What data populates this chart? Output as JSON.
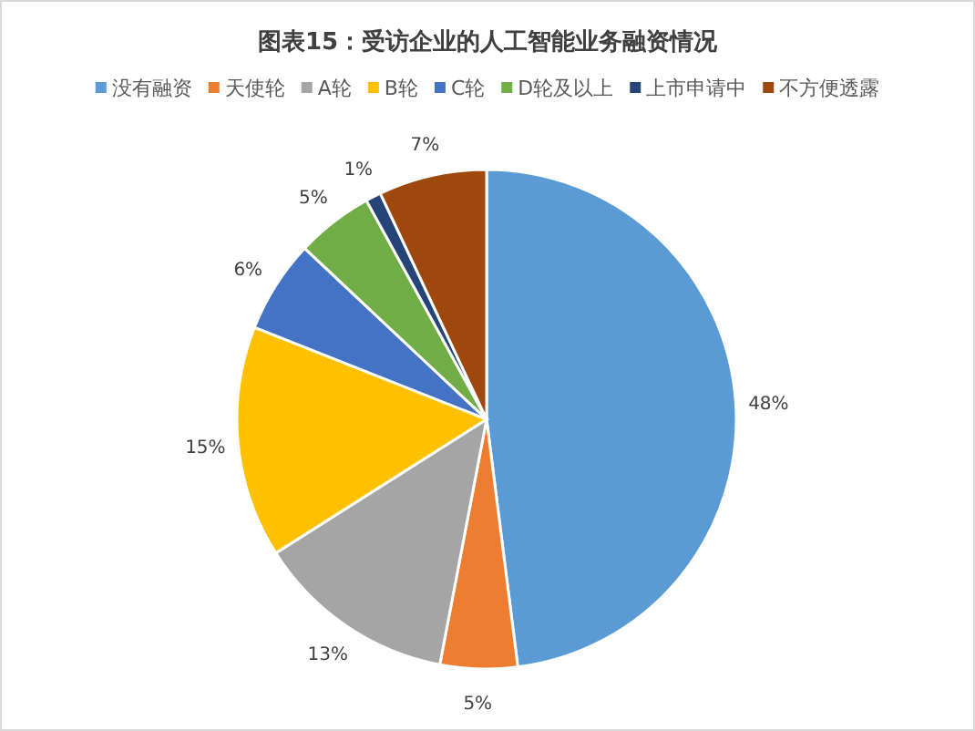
{
  "chart_data": {
    "type": "pie",
    "title": "图表15：受访企业的人工智能业务融资情况",
    "categories": [
      "没有融资",
      "天使轮",
      "A轮",
      "B轮",
      "C轮",
      "D轮及以上",
      "上市申请中",
      "不方便透露"
    ],
    "values": [
      48,
      5,
      13,
      15,
      6,
      5,
      1,
      7
    ],
    "colors": [
      "#5b9bd5",
      "#ed7d31",
      "#a5a5a5",
      "#ffc000",
      "#4472c4",
      "#70ad47",
      "#264478",
      "#9e480e"
    ],
    "value_labels": [
      "48%",
      "5%",
      "13%",
      "15%",
      "6%",
      "5%",
      "1%",
      "7%"
    ],
    "legend": "top"
  }
}
